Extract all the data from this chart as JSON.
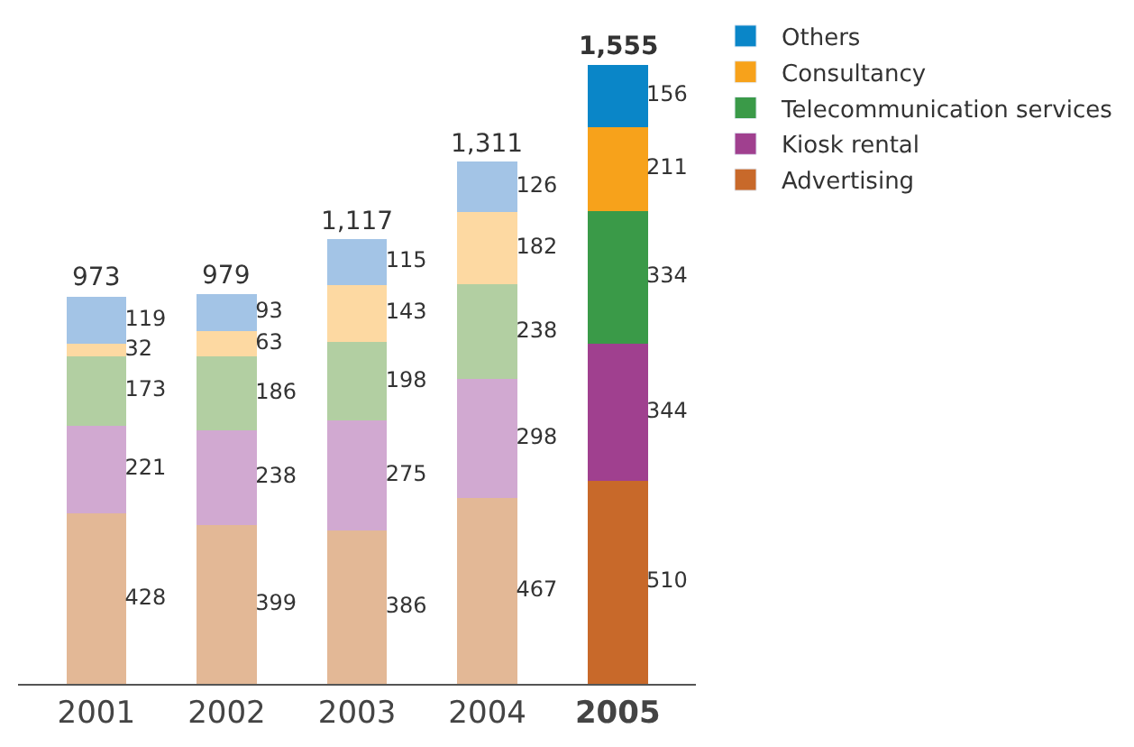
{
  "chart_data": {
    "type": "bar",
    "stacked": true,
    "data_labels": true,
    "legend": "top right",
    "categories": [
      "2001",
      "2002",
      "2003",
      "2004",
      "2005"
    ],
    "totals": [
      "973",
      "979",
      "1,117",
      "1,311",
      "1,555"
    ],
    "series": [
      {
        "name": "Advertising",
        "color": "#c8692a",
        "colors": [
          "#e3b896",
          "#e3b896",
          "#e3b896",
          "#e3b896",
          "#c8692a"
        ],
        "values": [
          428,
          399,
          386,
          467,
          510
        ]
      },
      {
        "name": "Kiosk rental",
        "color": "#a0408f",
        "colors": [
          "#d1a9d1",
          "#d1a9d1",
          "#d1a9d1",
          "#d1a9d1",
          "#a0408f"
        ],
        "values": [
          221,
          238,
          275,
          298,
          344
        ]
      },
      {
        "name": "Telecommunication services",
        "color": "#3a9a48",
        "colors": [
          "#b2cfa2",
          "#b2cfa2",
          "#b2cfa2",
          "#b2cfa2",
          "#3a9a48"
        ],
        "values": [
          173,
          186,
          198,
          238,
          334
        ]
      },
      {
        "name": "Consultancy",
        "color": "#f7a21b",
        "colors": [
          "#fdd9a2",
          "#fdd9a2",
          "#fdd9a2",
          "#fdd9a2",
          "#f7a21b"
        ],
        "values": [
          32,
          63,
          143,
          182,
          211
        ]
      },
      {
        "name": "Others",
        "color": "#0a86c8",
        "colors": [
          "#a3c4e6",
          "#a3c4e6",
          "#a3c4e6",
          "#a3c4e6",
          "#0a86c8"
        ],
        "values": [
          119,
          93,
          115,
          126,
          156
        ]
      }
    ]
  }
}
